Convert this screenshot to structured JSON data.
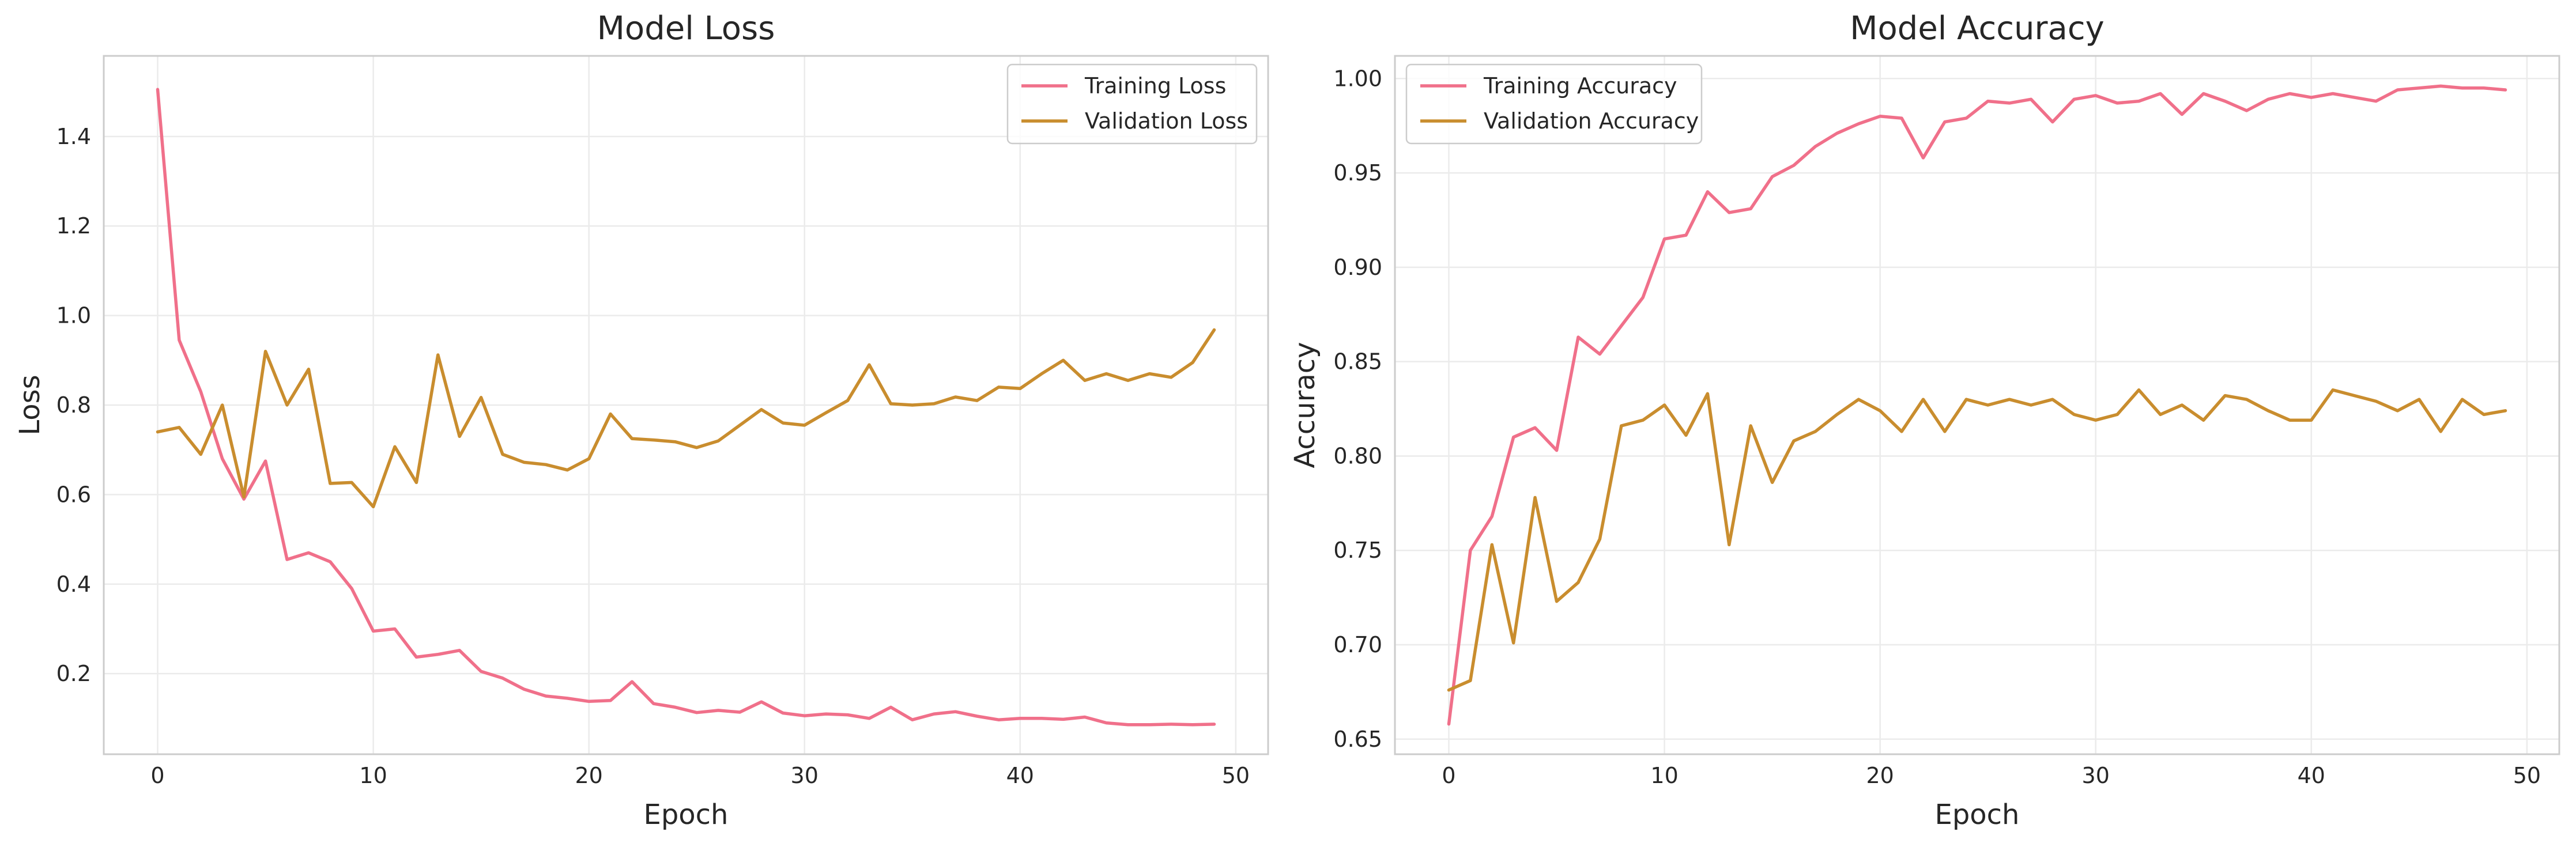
{
  "chart_data": [
    {
      "type": "line",
      "title": "Model Loss",
      "xlabel": "Epoch",
      "ylabel": "Loss",
      "xlim": [
        -2.5,
        51.5
      ],
      "ylim": [
        0.02,
        1.58
      ],
      "xticks": [
        0,
        10,
        20,
        30,
        40,
        50
      ],
      "yticks": [
        0.2,
        0.4,
        0.6,
        0.8,
        1.0,
        1.2,
        1.4
      ],
      "ytick_labels": [
        "0.2",
        "0.4",
        "0.6",
        "0.8",
        "1.0",
        "1.2",
        "1.4"
      ],
      "grid": true,
      "legend_position": "top-right",
      "x": [
        0,
        1,
        2,
        3,
        4,
        5,
        6,
        7,
        8,
        9,
        10,
        11,
        12,
        13,
        14,
        15,
        16,
        17,
        18,
        19,
        20,
        21,
        22,
        23,
        24,
        25,
        26,
        27,
        28,
        29,
        30,
        31,
        32,
        33,
        34,
        35,
        36,
        37,
        38,
        39,
        40,
        41,
        42,
        43,
        44,
        45,
        46,
        47,
        48,
        49
      ],
      "series": [
        {
          "name": "Training Loss",
          "color": "#f0708a",
          "values": [
            1.505,
            0.945,
            0.83,
            0.68,
            0.59,
            0.675,
            0.455,
            0.47,
            0.45,
            0.39,
            0.295,
            0.3,
            0.237,
            0.243,
            0.252,
            0.205,
            0.19,
            0.165,
            0.15,
            0.145,
            0.138,
            0.14,
            0.182,
            0.133,
            0.125,
            0.113,
            0.118,
            0.114,
            0.137,
            0.112,
            0.106,
            0.11,
            0.108,
            0.1,
            0.125,
            0.097,
            0.11,
            0.115,
            0.105,
            0.097,
            0.1,
            0.1,
            0.098,
            0.103,
            0.09,
            0.086,
            0.086,
            0.087,
            0.086,
            0.087
          ]
        },
        {
          "name": "Validation Loss",
          "color": "#c98d2e",
          "values": [
            0.74,
            0.75,
            0.69,
            0.8,
            0.595,
            0.92,
            0.8,
            0.88,
            0.625,
            0.627,
            0.573,
            0.707,
            0.627,
            0.912,
            0.73,
            0.817,
            0.69,
            0.672,
            0.667,
            0.655,
            0.68,
            0.78,
            0.725,
            0.722,
            0.718,
            0.705,
            0.72,
            0.755,
            0.79,
            0.76,
            0.755,
            0.783,
            0.81,
            0.89,
            0.803,
            0.8,
            0.803,
            0.818,
            0.81,
            0.84,
            0.837,
            0.87,
            0.9,
            0.855,
            0.87,
            0.855,
            0.87,
            0.862,
            0.895,
            0.968
          ]
        }
      ]
    },
    {
      "type": "line",
      "title": "Model Accuracy",
      "xlabel": "Epoch",
      "ylabel": "Accuracy",
      "xlim": [
        -2.5,
        51.5
      ],
      "ylim": [
        0.642,
        1.012
      ],
      "xticks": [
        0,
        10,
        20,
        30,
        40,
        50
      ],
      "yticks": [
        0.65,
        0.7,
        0.75,
        0.8,
        0.85,
        0.9,
        0.95,
        1.0
      ],
      "ytick_labels": [
        "0.65",
        "0.70",
        "0.75",
        "0.80",
        "0.85",
        "0.90",
        "0.95",
        "1.00"
      ],
      "grid": true,
      "legend_position": "top-left",
      "x": [
        0,
        1,
        2,
        3,
        4,
        5,
        6,
        7,
        8,
        9,
        10,
        11,
        12,
        13,
        14,
        15,
        16,
        17,
        18,
        19,
        20,
        21,
        22,
        23,
        24,
        25,
        26,
        27,
        28,
        29,
        30,
        31,
        32,
        33,
        34,
        35,
        36,
        37,
        38,
        39,
        40,
        41,
        42,
        43,
        44,
        45,
        46,
        47,
        48,
        49
      ],
      "series": [
        {
          "name": "Training Accuracy",
          "color": "#f0708a",
          "values": [
            0.658,
            0.75,
            0.768,
            0.81,
            0.815,
            0.803,
            0.863,
            0.854,
            0.869,
            0.884,
            0.915,
            0.917,
            0.94,
            0.929,
            0.931,
            0.948,
            0.954,
            0.964,
            0.971,
            0.976,
            0.98,
            0.979,
            0.958,
            0.977,
            0.979,
            0.988,
            0.987,
            0.989,
            0.977,
            0.989,
            0.991,
            0.987,
            0.988,
            0.992,
            0.981,
            0.992,
            0.988,
            0.983,
            0.989,
            0.992,
            0.99,
            0.992,
            0.99,
            0.988,
            0.994,
            0.995,
            0.996,
            0.995,
            0.995,
            0.994
          ]
        },
        {
          "name": "Validation Accuracy",
          "color": "#c98d2e",
          "values": [
            0.676,
            0.681,
            0.753,
            0.701,
            0.778,
            0.723,
            0.733,
            0.756,
            0.816,
            0.819,
            0.827,
            0.811,
            0.833,
            0.753,
            0.816,
            0.786,
            0.808,
            0.813,
            0.822,
            0.83,
            0.824,
            0.813,
            0.83,
            0.813,
            0.83,
            0.827,
            0.83,
            0.827,
            0.83,
            0.822,
            0.819,
            0.822,
            0.835,
            0.822,
            0.827,
            0.819,
            0.832,
            0.83,
            0.824,
            0.819,
            0.819,
            0.835,
            0.832,
            0.829,
            0.824,
            0.83,
            0.813,
            0.83,
            0.822,
            0.824
          ]
        }
      ]
    }
  ]
}
